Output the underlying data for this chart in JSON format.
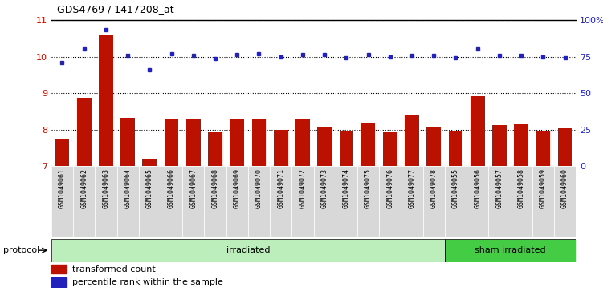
{
  "title": "GDS4769 / 1417208_at",
  "samples": [
    "GSM1049061",
    "GSM1049062",
    "GSM1049063",
    "GSM1049064",
    "GSM1049065",
    "GSM1049066",
    "GSM1049067",
    "GSM1049068",
    "GSM1049069",
    "GSM1049070",
    "GSM1049071",
    "GSM1049072",
    "GSM1049073",
    "GSM1049074",
    "GSM1049075",
    "GSM1049076",
    "GSM1049077",
    "GSM1049078",
    "GSM1049055",
    "GSM1049056",
    "GSM1049057",
    "GSM1049058",
    "GSM1049059",
    "GSM1049060"
  ],
  "bar_values": [
    7.72,
    8.87,
    10.58,
    8.32,
    7.2,
    8.28,
    8.28,
    7.93,
    8.28,
    8.27,
    8.0,
    8.28,
    8.07,
    7.95,
    8.17,
    7.93,
    8.38,
    8.05,
    7.97,
    8.92,
    8.13,
    8.14,
    7.97,
    8.04
  ],
  "dot_values": [
    9.83,
    10.22,
    10.75,
    10.04,
    9.65,
    10.08,
    10.05,
    9.95,
    10.07,
    10.08,
    9.99,
    10.07,
    10.07,
    9.98,
    10.07,
    9.99,
    10.05,
    10.04,
    9.97,
    10.22,
    10.04,
    10.04,
    9.99,
    9.97
  ],
  "bar_color": "#bb1100",
  "dot_color": "#2222bb",
  "ylim_left": [
    7,
    11
  ],
  "yticks_left": [
    7,
    8,
    9,
    10,
    11
  ],
  "ylim_right": [
    0,
    100
  ],
  "yticks_right": [
    0,
    25,
    50,
    75,
    100
  ],
  "yticklabels_right": [
    "0",
    "25",
    "50",
    "75",
    "100%"
  ],
  "irradiated_count": 18,
  "sham_count": 6,
  "irradiated_label": "irradiated",
  "sham_label": "sham irradiated",
  "protocol_label": "protocol",
  "legend_bar_label": "transformed count",
  "legend_dot_label": "percentile rank within the sample",
  "bg_color_plot": "#ffffff",
  "bg_color_xticklabels": "#d8d8d8",
  "bg_color_irradiated": "#bbeebb",
  "bg_color_sham": "#44cc44",
  "grid_color": "black",
  "grid_linestyle": "dotted",
  "fig_bg": "#ffffff"
}
